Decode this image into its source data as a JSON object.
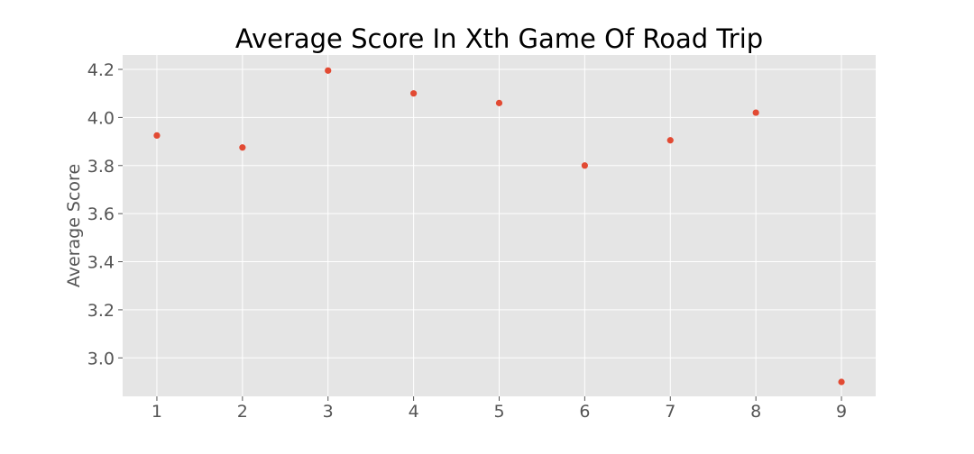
{
  "chart_data": {
    "type": "scatter",
    "title": "Average Score In Xth Game Of Road Trip",
    "xlabel": "",
    "ylabel": "Average Score",
    "x": [
      1,
      2,
      3,
      4,
      5,
      6,
      7,
      8,
      9
    ],
    "y": [
      3.925,
      3.875,
      4.195,
      4.1,
      4.06,
      3.8,
      3.905,
      4.02,
      2.9
    ],
    "xticks": [
      1,
      2,
      3,
      4,
      5,
      6,
      7,
      8,
      9
    ],
    "xtick_labels": [
      "1",
      "2",
      "3",
      "4",
      "5",
      "6",
      "7",
      "8",
      "9"
    ],
    "yticks": [
      3.0,
      3.2,
      3.4,
      3.6,
      3.8,
      4.0,
      4.2
    ],
    "ytick_labels": [
      "3.0",
      "3.2",
      "3.4",
      "3.6",
      "3.8",
      "4.0",
      "4.2"
    ],
    "xlim": [
      0.6,
      9.4
    ],
    "ylim": [
      2.84,
      4.26
    ],
    "grid": true,
    "legend": "none",
    "colors": {
      "marker": "#e24a33",
      "plot_background": "#e5e5e5",
      "grid": "#ffffff",
      "tick": "#555555",
      "title": "#000000"
    }
  }
}
